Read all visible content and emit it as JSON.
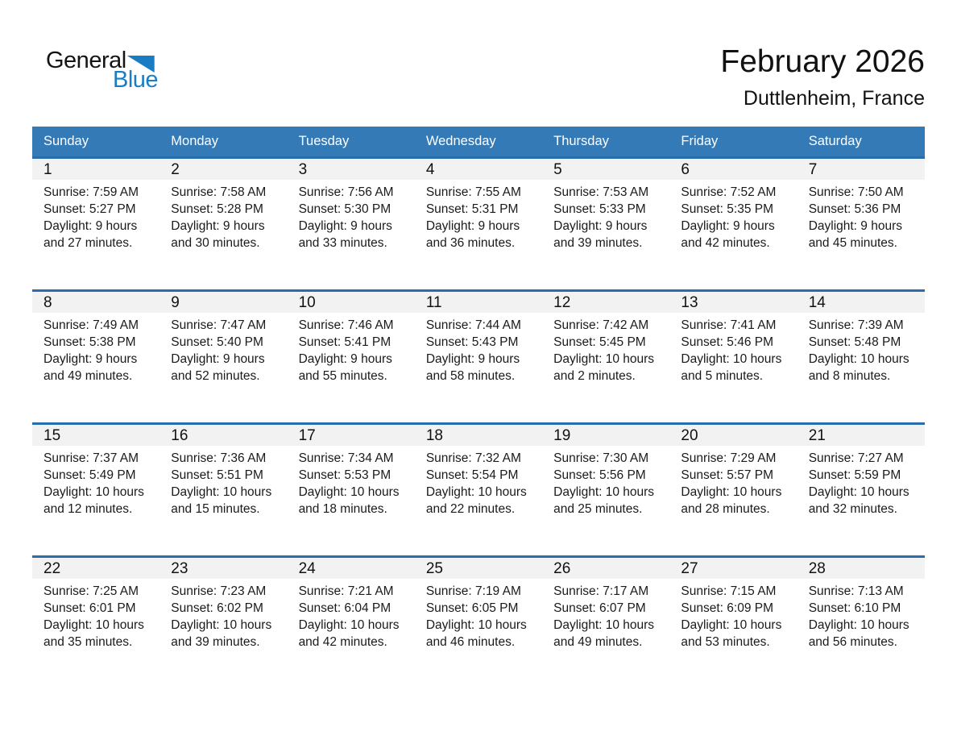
{
  "logo": {
    "part1": "General",
    "part2": "Blue"
  },
  "header": {
    "title": "February 2026",
    "subtitle": "Duttlenheim, France"
  },
  "colors": {
    "header_bg": "#337ab7",
    "week_border": "#2a6dad",
    "day_band_bg": "#f2f2f2",
    "logo_blue": "#1a7dc4"
  },
  "calendar": {
    "weekdays": [
      "Sunday",
      "Monday",
      "Tuesday",
      "Wednesday",
      "Thursday",
      "Friday",
      "Saturday"
    ],
    "weeks": [
      [
        {
          "day": "1",
          "lines": [
            "Sunrise: 7:59 AM",
            "Sunset: 5:27 PM",
            "Daylight: 9 hours",
            "and 27 minutes."
          ]
        },
        {
          "day": "2",
          "lines": [
            "Sunrise: 7:58 AM",
            "Sunset: 5:28 PM",
            "Daylight: 9 hours",
            "and 30 minutes."
          ]
        },
        {
          "day": "3",
          "lines": [
            "Sunrise: 7:56 AM",
            "Sunset: 5:30 PM",
            "Daylight: 9 hours",
            "and 33 minutes."
          ]
        },
        {
          "day": "4",
          "lines": [
            "Sunrise: 7:55 AM",
            "Sunset: 5:31 PM",
            "Daylight: 9 hours",
            "and 36 minutes."
          ]
        },
        {
          "day": "5",
          "lines": [
            "Sunrise: 7:53 AM",
            "Sunset: 5:33 PM",
            "Daylight: 9 hours",
            "and 39 minutes."
          ]
        },
        {
          "day": "6",
          "lines": [
            "Sunrise: 7:52 AM",
            "Sunset: 5:35 PM",
            "Daylight: 9 hours",
            "and 42 minutes."
          ]
        },
        {
          "day": "7",
          "lines": [
            "Sunrise: 7:50 AM",
            "Sunset: 5:36 PM",
            "Daylight: 9 hours",
            "and 45 minutes."
          ]
        }
      ],
      [
        {
          "day": "8",
          "lines": [
            "Sunrise: 7:49 AM",
            "Sunset: 5:38 PM",
            "Daylight: 9 hours",
            "and 49 minutes."
          ]
        },
        {
          "day": "9",
          "lines": [
            "Sunrise: 7:47 AM",
            "Sunset: 5:40 PM",
            "Daylight: 9 hours",
            "and 52 minutes."
          ]
        },
        {
          "day": "10",
          "lines": [
            "Sunrise: 7:46 AM",
            "Sunset: 5:41 PM",
            "Daylight: 9 hours",
            "and 55 minutes."
          ]
        },
        {
          "day": "11",
          "lines": [
            "Sunrise: 7:44 AM",
            "Sunset: 5:43 PM",
            "Daylight: 9 hours",
            "and 58 minutes."
          ]
        },
        {
          "day": "12",
          "lines": [
            "Sunrise: 7:42 AM",
            "Sunset: 5:45 PM",
            "Daylight: 10 hours",
            "and 2 minutes."
          ]
        },
        {
          "day": "13",
          "lines": [
            "Sunrise: 7:41 AM",
            "Sunset: 5:46 PM",
            "Daylight: 10 hours",
            "and 5 minutes."
          ]
        },
        {
          "day": "14",
          "lines": [
            "Sunrise: 7:39 AM",
            "Sunset: 5:48 PM",
            "Daylight: 10 hours",
            "and 8 minutes."
          ]
        }
      ],
      [
        {
          "day": "15",
          "lines": [
            "Sunrise: 7:37 AM",
            "Sunset: 5:49 PM",
            "Daylight: 10 hours",
            "and 12 minutes."
          ]
        },
        {
          "day": "16",
          "lines": [
            "Sunrise: 7:36 AM",
            "Sunset: 5:51 PM",
            "Daylight: 10 hours",
            "and 15 minutes."
          ]
        },
        {
          "day": "17",
          "lines": [
            "Sunrise: 7:34 AM",
            "Sunset: 5:53 PM",
            "Daylight: 10 hours",
            "and 18 minutes."
          ]
        },
        {
          "day": "18",
          "lines": [
            "Sunrise: 7:32 AM",
            "Sunset: 5:54 PM",
            "Daylight: 10 hours",
            "and 22 minutes."
          ]
        },
        {
          "day": "19",
          "lines": [
            "Sunrise: 7:30 AM",
            "Sunset: 5:56 PM",
            "Daylight: 10 hours",
            "and 25 minutes."
          ]
        },
        {
          "day": "20",
          "lines": [
            "Sunrise: 7:29 AM",
            "Sunset: 5:57 PM",
            "Daylight: 10 hours",
            "and 28 minutes."
          ]
        },
        {
          "day": "21",
          "lines": [
            "Sunrise: 7:27 AM",
            "Sunset: 5:59 PM",
            "Daylight: 10 hours",
            "and 32 minutes."
          ]
        }
      ],
      [
        {
          "day": "22",
          "lines": [
            "Sunrise: 7:25 AM",
            "Sunset: 6:01 PM",
            "Daylight: 10 hours",
            "and 35 minutes."
          ]
        },
        {
          "day": "23",
          "lines": [
            "Sunrise: 7:23 AM",
            "Sunset: 6:02 PM",
            "Daylight: 10 hours",
            "and 39 minutes."
          ]
        },
        {
          "day": "24",
          "lines": [
            "Sunrise: 7:21 AM",
            "Sunset: 6:04 PM",
            "Daylight: 10 hours",
            "and 42 minutes."
          ]
        },
        {
          "day": "25",
          "lines": [
            "Sunrise: 7:19 AM",
            "Sunset: 6:05 PM",
            "Daylight: 10 hours",
            "and 46 minutes."
          ]
        },
        {
          "day": "26",
          "lines": [
            "Sunrise: 7:17 AM",
            "Sunset: 6:07 PM",
            "Daylight: 10 hours",
            "and 49 minutes."
          ]
        },
        {
          "day": "27",
          "lines": [
            "Sunrise: 7:15 AM",
            "Sunset: 6:09 PM",
            "Daylight: 10 hours",
            "and 53 minutes."
          ]
        },
        {
          "day": "28",
          "lines": [
            "Sunrise: 7:13 AM",
            "Sunset: 6:10 PM",
            "Daylight: 10 hours",
            "and 56 minutes."
          ]
        }
      ]
    ]
  }
}
